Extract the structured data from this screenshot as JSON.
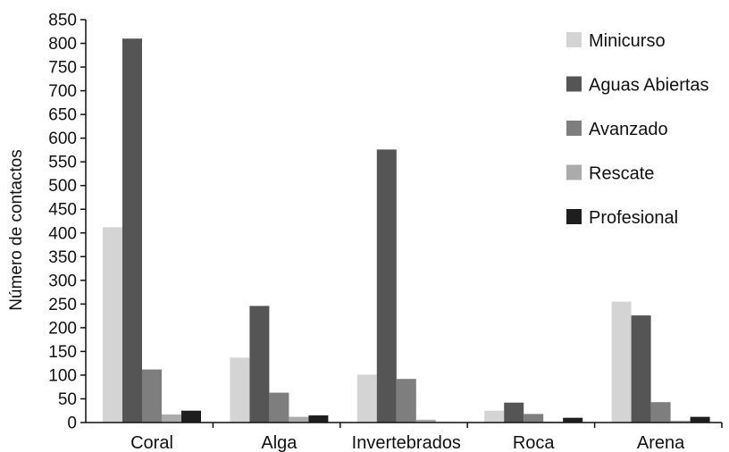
{
  "chart_data": {
    "type": "bar",
    "title": "",
    "xlabel": "",
    "ylabel": "Número de contactos",
    "ylim": [
      0,
      850
    ],
    "yticks": [
      0,
      50,
      100,
      150,
      200,
      250,
      300,
      350,
      400,
      450,
      500,
      550,
      600,
      650,
      700,
      750,
      800,
      850
    ],
    "grid": false,
    "legend_position": "top-right",
    "categories": [
      "Coral",
      "Alga",
      "Invertebrados",
      "Roca",
      "Arena"
    ],
    "series": [
      {
        "name": "Minicurso",
        "color": "#d4d4d4",
        "values": [
          412,
          137,
          101,
          25,
          255
        ]
      },
      {
        "name": "Aguas Abiertas",
        "color": "#555555",
        "values": [
          810,
          246,
          576,
          42,
          226
        ]
      },
      {
        "name": "Avanzado",
        "color": "#7e7e7e",
        "values": [
          112,
          63,
          92,
          18,
          43
        ]
      },
      {
        "name": "Rescate",
        "color": "#ababab",
        "values": [
          17,
          12,
          6,
          2,
          4
        ]
      },
      {
        "name": "Profesional",
        "color": "#1e1e1e",
        "values": [
          25,
          15,
          1,
          10,
          12
        ]
      }
    ]
  }
}
